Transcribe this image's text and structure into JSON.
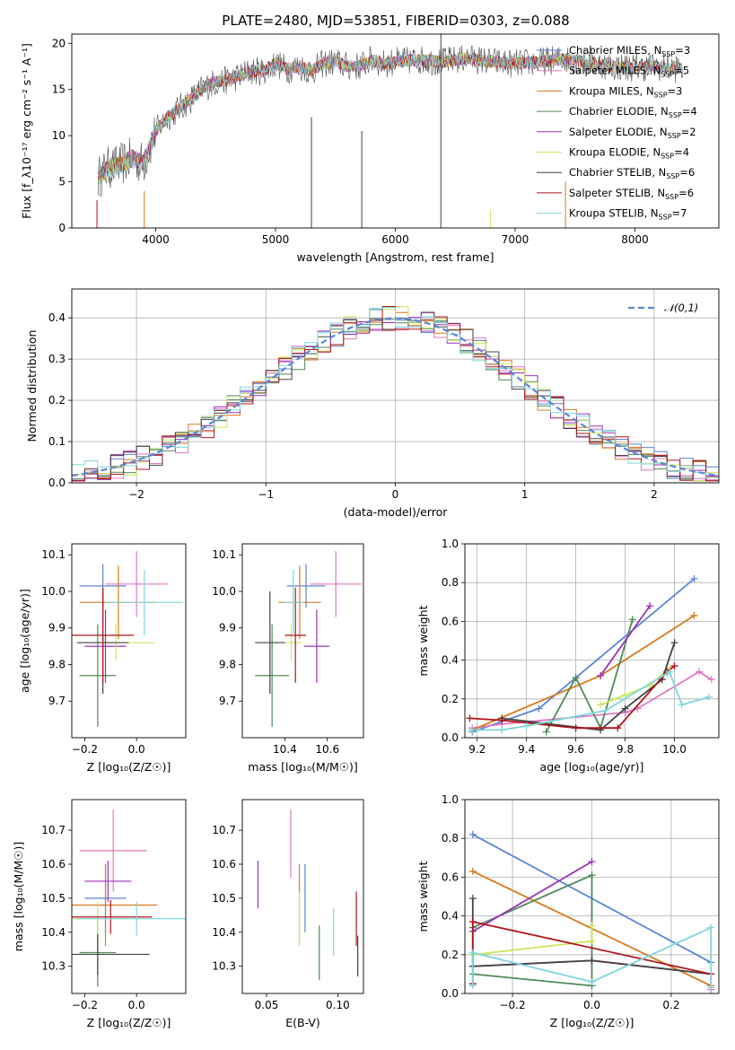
{
  "title": "PLATE=2480, MJD=53851, FIBERID=0303, z=0.088",
  "models": [
    {
      "label": "Chabrier MILES, N$_{SSP}$=3",
      "base": "Chabrier MILES, N",
      "sub": "SSP",
      "tail": "=3",
      "color": "#5b86d6"
    },
    {
      "label": "Salpeter MILES, N$_{SSP}$=5",
      "base": "Salpeter MILES, N",
      "sub": "SSP",
      "tail": "=5",
      "color": "#e377c2"
    },
    {
      "label": "Kroupa MILES, N$_{SSP}$=3",
      "base": "Kroupa MILES, N",
      "sub": "SSP",
      "tail": "=3",
      "color": "#d97a1c"
    },
    {
      "label": "Chabrier ELODIE, N$_{SSP}$=4",
      "base": "Chabrier ELODIE, N",
      "sub": "SSP",
      "tail": "=4",
      "color": "#4f8a5b"
    },
    {
      "label": "Salpeter ELODIE, N$_{SSP}$=2",
      "base": "Salpeter ELODIE, N",
      "sub": "SSP",
      "tail": "=2",
      "color": "#9b30b8"
    },
    {
      "label": "Kroupa ELODIE, N$_{SSP}$=4",
      "base": "Kroupa ELODIE, N",
      "sub": "SSP",
      "tail": "=4",
      "color": "#cde65a"
    },
    {
      "label": "Chabrier STELIB, N$_{SSP}$=6",
      "base": "Chabrier STELIB, N",
      "sub": "SSP",
      "tail": "=6",
      "color": "#444444"
    },
    {
      "label": "Salpeter STELIB, N$_{SSP}$=6",
      "base": "Salpeter STELIB, N",
      "sub": "SSP",
      "tail": "=6",
      "color": "#b0151c"
    },
    {
      "label": "Kroupa STELIB, N$_{SSP}$=7",
      "base": "Kroupa STELIB, N",
      "sub": "SSP",
      "tail": "=7",
      "color": "#7fd6dc"
    }
  ],
  "chart_data": [
    {
      "id": "spectrum",
      "type": "line",
      "xlabel": "wavelength [Angstrom, rest frame]",
      "ylabel": "Flux [f_λ10⁻¹⁷ erg cm⁻² s⁻¹ A⁻¹]",
      "xlim": [
        3300,
        8700
      ],
      "ylim": [
        0,
        21
      ],
      "xticks": [
        4000,
        5000,
        6000,
        7000,
        8000
      ],
      "yticks": [
        0,
        5,
        10,
        15,
        20
      ],
      "x": [
        3500,
        3600,
        3700,
        3800,
        3900,
        4000,
        4100,
        4200,
        4300,
        4400,
        4500,
        4600,
        4700,
        4800,
        4900,
        5000,
        5100,
        5200,
        5300,
        5400,
        5500,
        5600,
        5700,
        5800,
        5900,
        6000,
        6200,
        6400,
        6600,
        6800,
        7000,
        7200,
        7400,
        7600,
        7800,
        8000,
        8200,
        8400
      ],
      "y": [
        5.2,
        6.5,
        6.8,
        7.5,
        7.0,
        10.5,
        12.0,
        13.0,
        14.0,
        15.2,
        15.8,
        16.0,
        16.5,
        17.0,
        17.0,
        17.8,
        17.2,
        17.5,
        17.0,
        17.8,
        18.0,
        17.5,
        17.5,
        18.2,
        17.8,
        18.0,
        18.2,
        18.0,
        18.4,
        18.0,
        17.8,
        18.0,
        18.3,
        18.0,
        17.5,
        17.4,
        17.5,
        17.2
      ],
      "legend_position": "top-right",
      "grid": false
    },
    {
      "id": "residuals",
      "type": "histogram",
      "xlabel": "(data-model)/error",
      "ylabel": "Normed distribution",
      "xlim": [
        -2.5,
        2.5
      ],
      "ylim": [
        0,
        0.47
      ],
      "xticks": [
        -2,
        -1,
        0,
        1,
        2
      ],
      "yticks": [
        0,
        0.1,
        0.2,
        0.3,
        0.4
      ],
      "bin_width": 0.1,
      "reference_label": "𝒩(0,1)",
      "grid": true,
      "legend_position": "top-right"
    },
    {
      "id": "age_vs_Z",
      "type": "errorbar",
      "xlabel": "Z [log₁₀(Z/Z☉)]",
      "ylabel": "age  [log₁₀(age/yr)]",
      "xlim": [
        -0.25,
        0.19
      ],
      "ylim": [
        9.6,
        10.13
      ],
      "xticks": [
        -0.2,
        0.0
      ],
      "yticks": [
        9.7,
        9.8,
        9.9,
        10.0,
        10.1
      ],
      "points": [
        {
          "model": 0,
          "x": -0.13,
          "xerr": 0.09,
          "y": 10.015,
          "yerr": 0.06
        },
        {
          "model": 1,
          "x": 0.0,
          "xerr": 0.12,
          "y": 10.02,
          "yerr": 0.09
        },
        {
          "model": 2,
          "x": -0.07,
          "xerr": 0.15,
          "y": 9.97,
          "yerr": 0.1
        },
        {
          "model": 3,
          "x": -0.15,
          "xerr": 0.07,
          "y": 9.77,
          "yerr": 0.14
        },
        {
          "model": 4,
          "x": -0.12,
          "xerr": 0.08,
          "y": 9.85,
          "yerr": 0.1
        },
        {
          "model": 5,
          "x": -0.08,
          "xerr": 0.15,
          "y": 9.86,
          "yerr": 0.05
        },
        {
          "model": 6,
          "x": -0.13,
          "xerr": 0.1,
          "y": 9.86,
          "yerr": 0.14
        },
        {
          "model": 7,
          "x": -0.13,
          "xerr": 0.12,
          "y": 9.88,
          "yerr": 0.13
        },
        {
          "model": 8,
          "x": 0.03,
          "xerr": 0.15,
          "y": 9.97,
          "yerr": 0.09
        }
      ]
    },
    {
      "id": "age_vs_mass",
      "type": "errorbar",
      "xlabel": "mass [log₁₀(M/M☉)]",
      "ylabel": "",
      "xlim": [
        10.2,
        10.77
      ],
      "ylim": [
        9.6,
        10.13
      ],
      "xticks": [
        10.4,
        10.6
      ],
      "yticks": [
        9.7,
        9.8,
        9.9,
        10.0,
        10.1
      ],
      "points": [
        {
          "model": 0,
          "x": 10.5,
          "xerr": 0.09,
          "y": 10.015,
          "yerr": 0.06
        },
        {
          "model": 1,
          "x": 10.64,
          "xerr": 0.12,
          "y": 10.02,
          "yerr": 0.09
        },
        {
          "model": 2,
          "x": 10.47,
          "xerr": 0.1,
          "y": 9.97,
          "yerr": 0.1
        },
        {
          "model": 3,
          "x": 10.34,
          "xerr": 0.08,
          "y": 9.77,
          "yerr": 0.14
        },
        {
          "model": 4,
          "x": 10.55,
          "xerr": 0.06,
          "y": 9.85,
          "yerr": 0.1
        },
        {
          "model": 5,
          "x": 10.43,
          "xerr": 0.05,
          "y": 9.86,
          "yerr": 0.05
        },
        {
          "model": 6,
          "x": 10.33,
          "xerr": 0.07,
          "y": 9.86,
          "yerr": 0.14
        },
        {
          "model": 7,
          "x": 10.45,
          "xerr": 0.05,
          "y": 9.88,
          "yerr": 0.13
        },
        {
          "model": 8,
          "x": 10.44,
          "xerr": 0.05,
          "y": 9.97,
          "yerr": 0.09
        }
      ]
    },
    {
      "id": "massweight_vs_age",
      "type": "line",
      "xlabel": "age  [log₁₀(age/yr)]",
      "ylabel": "mass weight",
      "xlim": [
        9.15,
        10.18
      ],
      "ylim": [
        0,
        1
      ],
      "xticks": [
        9.2,
        9.4,
        9.6,
        9.8,
        10.0
      ],
      "yticks": [
        0,
        0.2,
        0.4,
        0.6,
        0.8,
        1.0
      ],
      "series": [
        {
          "model": 0,
          "x": [
            9.18,
            9.45,
            10.08
          ],
          "y": [
            0.03,
            0.15,
            0.82
          ]
        },
        {
          "model": 1,
          "x": [
            9.18,
            9.3,
            9.8,
            9.85,
            10.1,
            10.15
          ],
          "y": [
            0.05,
            0.07,
            0.13,
            0.15,
            0.34,
            0.3
          ]
        },
        {
          "model": 2,
          "x": [
            9.18,
            9.7,
            10.08
          ],
          "y": [
            0.04,
            0.32,
            0.63
          ]
        },
        {
          "model": 3,
          "x": [
            9.48,
            9.6,
            9.7,
            9.83
          ],
          "y": [
            0.03,
            0.31,
            0.05,
            0.61
          ]
        },
        {
          "model": 4,
          "x": [
            9.7,
            9.9
          ],
          "y": [
            0.32,
            0.68
          ]
        },
        {
          "model": 5,
          "x": [
            9.7,
            9.8,
            9.9,
            9.98
          ],
          "y": [
            0.17,
            0.22,
            0.27,
            0.36
          ]
        },
        {
          "model": 6,
          "x": [
            9.3,
            9.7,
            9.8,
            9.95,
            10.0
          ],
          "y": [
            0.1,
            0.04,
            0.15,
            0.3,
            0.49
          ]
        },
        {
          "model": 7,
          "x": [
            9.17,
            9.3,
            9.6,
            9.77,
            9.97,
            10.0
          ],
          "y": [
            0.1,
            0.09,
            0.05,
            0.05,
            0.34,
            0.37
          ]
        },
        {
          "model": 8,
          "x": [
            9.18,
            9.3,
            9.4,
            9.72,
            9.98,
            10.03,
            10.14
          ],
          "y": [
            0.04,
            0.04,
            0.06,
            0.14,
            0.34,
            0.17,
            0.21
          ]
        }
      ],
      "grid": true
    },
    {
      "id": "mass_vs_Z",
      "type": "errorbar",
      "xlabel": "Z [log₁₀(Z/Z☉)]",
      "ylabel": "mass [log₁₀(M/M☉)]",
      "xlim": [
        -0.25,
        0.19
      ],
      "ylim": [
        10.22,
        10.79
      ],
      "xticks": [
        -0.2,
        0.0
      ],
      "yticks": [
        10.3,
        10.4,
        10.5,
        10.6,
        10.7
      ],
      "points": [
        {
          "model": 0,
          "x": -0.12,
          "xerr": 0.08,
          "y": 10.5,
          "yerr": 0.1
        },
        {
          "model": 1,
          "x": -0.09,
          "xerr": 0.13,
          "y": 10.64,
          "yerr": 0.12
        },
        {
          "model": 2,
          "x": -0.12,
          "xerr": 0.2,
          "y": 10.48,
          "yerr": 0.12
        },
        {
          "model": 3,
          "x": -0.15,
          "xerr": 0.07,
          "y": 10.34,
          "yerr": 0.1
        },
        {
          "model": 4,
          "x": -0.11,
          "xerr": 0.09,
          "y": 10.55,
          "yerr": 0.06
        },
        {
          "model": 5,
          "x": -0.15,
          "xerr": 0.1,
          "y": 10.44,
          "yerr": 0.05
        },
        {
          "model": 6,
          "x": -0.15,
          "xerr": 0.2,
          "y": 10.335,
          "yerr": 0.06
        },
        {
          "model": 7,
          "x": -0.1,
          "xerr": 0.16,
          "y": 10.445,
          "yerr": 0.05
        },
        {
          "model": 8,
          "x": 0.0,
          "xerr": 0.23,
          "y": 10.44,
          "yerr": 0.05
        }
      ]
    },
    {
      "id": "mass_vs_ebv",
      "type": "errorbar",
      "xlabel": "E(B-V)",
      "ylabel": "",
      "xlim": [
        0.033,
        0.118
      ],
      "ylim": [
        10.22,
        10.79
      ],
      "xticks": [
        0.05,
        0.1
      ],
      "yticks": [
        10.3,
        10.4,
        10.5,
        10.6,
        10.7
      ],
      "points": [
        {
          "model": 0,
          "x": 0.077,
          "xerr": 0,
          "y": 10.5,
          "yerr": 0.1
        },
        {
          "model": 1,
          "x": 0.067,
          "xerr": 0,
          "y": 10.66,
          "yerr": 0.1
        },
        {
          "model": 2,
          "x": 0.073,
          "xerr": 0,
          "y": 10.48,
          "yerr": 0.12
        },
        {
          "model": 3,
          "x": 0.087,
          "xerr": 0,
          "y": 10.34,
          "yerr": 0.08
        },
        {
          "model": 4,
          "x": 0.044,
          "xerr": 0,
          "y": 10.54,
          "yerr": 0.07
        },
        {
          "model": 5,
          "x": 0.073,
          "xerr": 0,
          "y": 10.44,
          "yerr": 0.08
        },
        {
          "model": 6,
          "x": 0.114,
          "xerr": 0,
          "y": 10.33,
          "yerr": 0.06
        },
        {
          "model": 7,
          "x": 0.113,
          "xerr": 0,
          "y": 10.44,
          "yerr": 0.08
        },
        {
          "model": 8,
          "x": 0.097,
          "xerr": 0,
          "y": 10.4,
          "yerr": 0.07
        }
      ]
    },
    {
      "id": "massweight_vs_Z",
      "type": "line",
      "xlabel": "Z [log₁₀(Z/Z☉)]",
      "ylabel": "mass weight",
      "xlim": [
        -0.32,
        0.32
      ],
      "ylim": [
        0,
        1
      ],
      "xticks": [
        -0.2,
        0.0,
        0.2
      ],
      "yticks": [
        0,
        0.2,
        0.4,
        0.6,
        0.8,
        1.0
      ],
      "series": [
        {
          "model": 0,
          "x": [
            -0.3,
            0.3
          ],
          "y": [
            0.82,
            0.16
          ]
        },
        {
          "model": 1,
          "x": [
            -0.3,
            0.0,
            0.3,
            0.3
          ],
          "y": [
            0.14,
            0.17,
            0.1,
            0.02
          ]
        },
        {
          "model": 2,
          "x": [
            -0.3,
            0.3
          ],
          "y": [
            0.63,
            0.04
          ]
        },
        {
          "model": 3,
          "x": [
            -0.3,
            0.0,
            0.0,
            -0.3
          ],
          "y": [
            0.34,
            0.61,
            0.04,
            0.1
          ]
        },
        {
          "model": 4,
          "x": [
            -0.3,
            0.0
          ],
          "y": [
            0.32,
            0.68
          ]
        },
        {
          "model": 5,
          "x": [
            -0.3,
            0.0,
            0.0
          ],
          "y": [
            0.2,
            0.27,
            0.35
          ]
        },
        {
          "model": 6,
          "x": [
            -0.3,
            -0.3,
            0.0,
            0.3
          ],
          "y": [
            0.49,
            0.14,
            0.17,
            0.1
          ]
        },
        {
          "model": 7,
          "x": [
            -0.3,
            -0.3,
            0.3
          ],
          "y": [
            0.05,
            0.37,
            0.1
          ]
        },
        {
          "model": 8,
          "x": [
            -0.3,
            -0.3,
            0.0,
            0.3,
            0.3
          ],
          "y": [
            0.04,
            0.21,
            0.06,
            0.34,
            0.03
          ]
        }
      ],
      "grid": true
    }
  ]
}
